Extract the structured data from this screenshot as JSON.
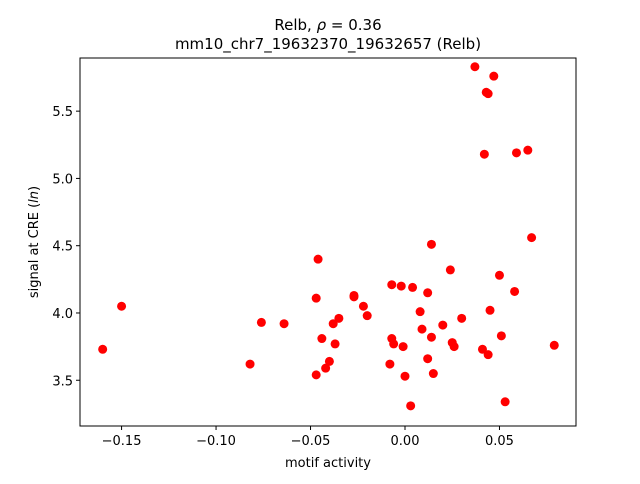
{
  "chart_data": {
    "type": "scatter",
    "title_prefix": "Relb, ",
    "title_rho": "ρ",
    "title_suffix": " = 0.36",
    "subtitle": "mm10_chr7_19632370_19632657 (Relb)",
    "xlabel": "motif activity",
    "ylabel_prefix": "signal at CRE (",
    "ylabel_italic": "ln",
    "ylabel_suffix": ")",
    "xlim": [
      -0.172,
      0.0905
    ],
    "ylim": [
      3.16,
      5.895
    ],
    "xticks": [
      -0.15,
      -0.1,
      -0.05,
      0.0,
      0.05
    ],
    "xtick_labels": [
      "−0.15",
      "−0.10",
      "−0.05",
      "0.00",
      "0.05"
    ],
    "yticks": [
      3.5,
      4.0,
      4.5,
      5.0,
      5.5
    ],
    "ytick_labels": [
      "3.5",
      "4.0",
      "4.5",
      "5.0",
      "5.5"
    ],
    "grid": false,
    "marker_color": "#ff0000",
    "points": [
      [
        -0.16,
        3.73
      ],
      [
        -0.15,
        4.05
      ],
      [
        -0.082,
        3.62
      ],
      [
        -0.076,
        3.93
      ],
      [
        -0.064,
        3.92
      ],
      [
        -0.047,
        4.11
      ],
      [
        -0.046,
        4.4
      ],
      [
        -0.047,
        3.54
      ],
      [
        -0.044,
        3.81
      ],
      [
        -0.042,
        3.59
      ],
      [
        -0.04,
        3.64
      ],
      [
        -0.038,
        3.92
      ],
      [
        -0.037,
        3.77
      ],
      [
        -0.035,
        3.96
      ],
      [
        -0.027,
        4.12
      ],
      [
        -0.027,
        4.13
      ],
      [
        -0.022,
        4.05
      ],
      [
        -0.02,
        3.98
      ],
      [
        -0.008,
        3.62
      ],
      [
        -0.007,
        4.21
      ],
      [
        -0.007,
        3.81
      ],
      [
        -0.006,
        3.77
      ],
      [
        -0.002,
        4.2
      ],
      [
        -0.001,
        3.75
      ],
      [
        0.0,
        3.53
      ],
      [
        0.003,
        3.31
      ],
      [
        0.004,
        4.19
      ],
      [
        0.008,
        4.01
      ],
      [
        0.009,
        3.88
      ],
      [
        0.012,
        4.15
      ],
      [
        0.012,
        3.66
      ],
      [
        0.014,
        3.82
      ],
      [
        0.014,
        4.51
      ],
      [
        0.015,
        3.55
      ],
      [
        0.02,
        3.91
      ],
      [
        0.024,
        4.32
      ],
      [
        0.025,
        3.78
      ],
      [
        0.026,
        3.75
      ],
      [
        0.03,
        3.96
      ],
      [
        0.037,
        5.83
      ],
      [
        0.041,
        3.73
      ],
      [
        0.042,
        5.18
      ],
      [
        0.043,
        5.64
      ],
      [
        0.044,
        3.69
      ],
      [
        0.044,
        5.63
      ],
      [
        0.045,
        4.02
      ],
      [
        0.047,
        5.76
      ],
      [
        0.05,
        4.28
      ],
      [
        0.051,
        3.83
      ],
      [
        0.053,
        3.34
      ],
      [
        0.058,
        4.16
      ],
      [
        0.059,
        5.19
      ],
      [
        0.065,
        5.21
      ],
      [
        0.067,
        4.56
      ],
      [
        0.079,
        3.76
      ]
    ]
  }
}
